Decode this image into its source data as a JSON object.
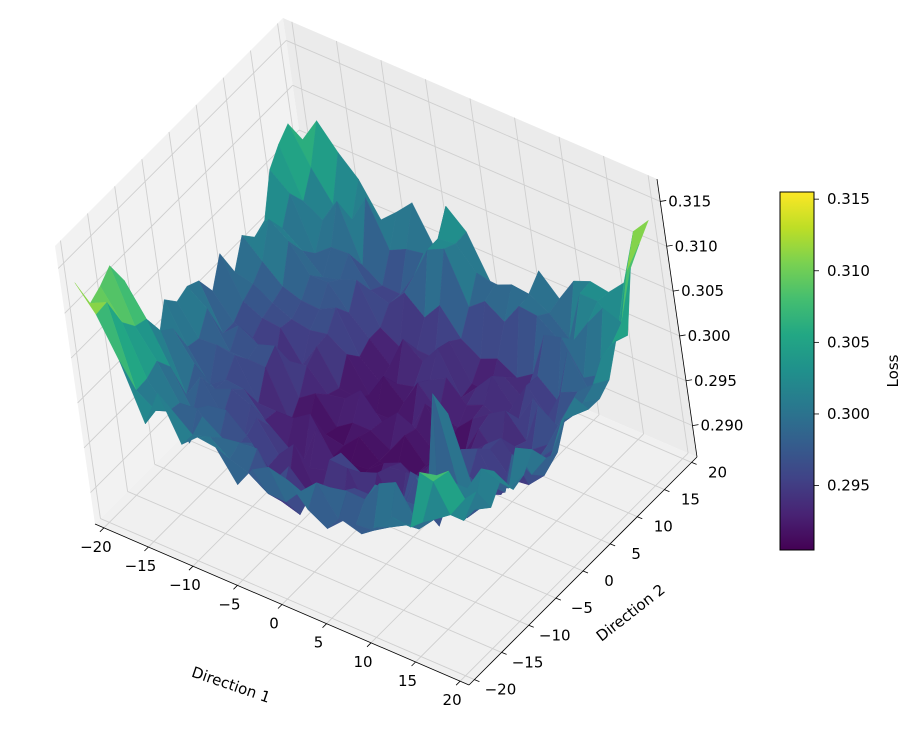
{
  "chart_data": {
    "type": "surface3d",
    "colormap": "viridis",
    "title": "",
    "xlabel": "Direction 1",
    "ylabel": "Direction 2",
    "zlabel": "",
    "xlim": [
      -21,
      21
    ],
    "ylim": [
      -21,
      21
    ],
    "zlim": [
      0.2865,
      0.3175
    ],
    "x_ticks": [
      "−20",
      "−15",
      "−10",
      "−5",
      "0",
      "5",
      "10",
      "15",
      "20"
    ],
    "y_ticks": [
      "−20",
      "−15",
      "−10",
      "−5",
      "0",
      "5",
      "10",
      "15",
      "20"
    ],
    "z_ticks": [
      "0.290",
      "0.295",
      "0.300",
      "0.305",
      "0.310",
      "0.315"
    ],
    "grid": true,
    "surface_summary": {
      "grid_size": 21,
      "x_range": [
        -20,
        20
      ],
      "y_range": [
        -20,
        20
      ],
      "min_loss_near": [
        0,
        0
      ],
      "min_loss": 0.291,
      "max_loss": 0.3155,
      "shape": "noisy bowl, higher at corners and edges"
    },
    "colorbar": {
      "label": "Loss",
      "range": [
        0.2905,
        0.3155
      ],
      "ticks": [
        "0.295",
        "0.300",
        "0.305",
        "0.310",
        "0.315"
      ]
    }
  }
}
